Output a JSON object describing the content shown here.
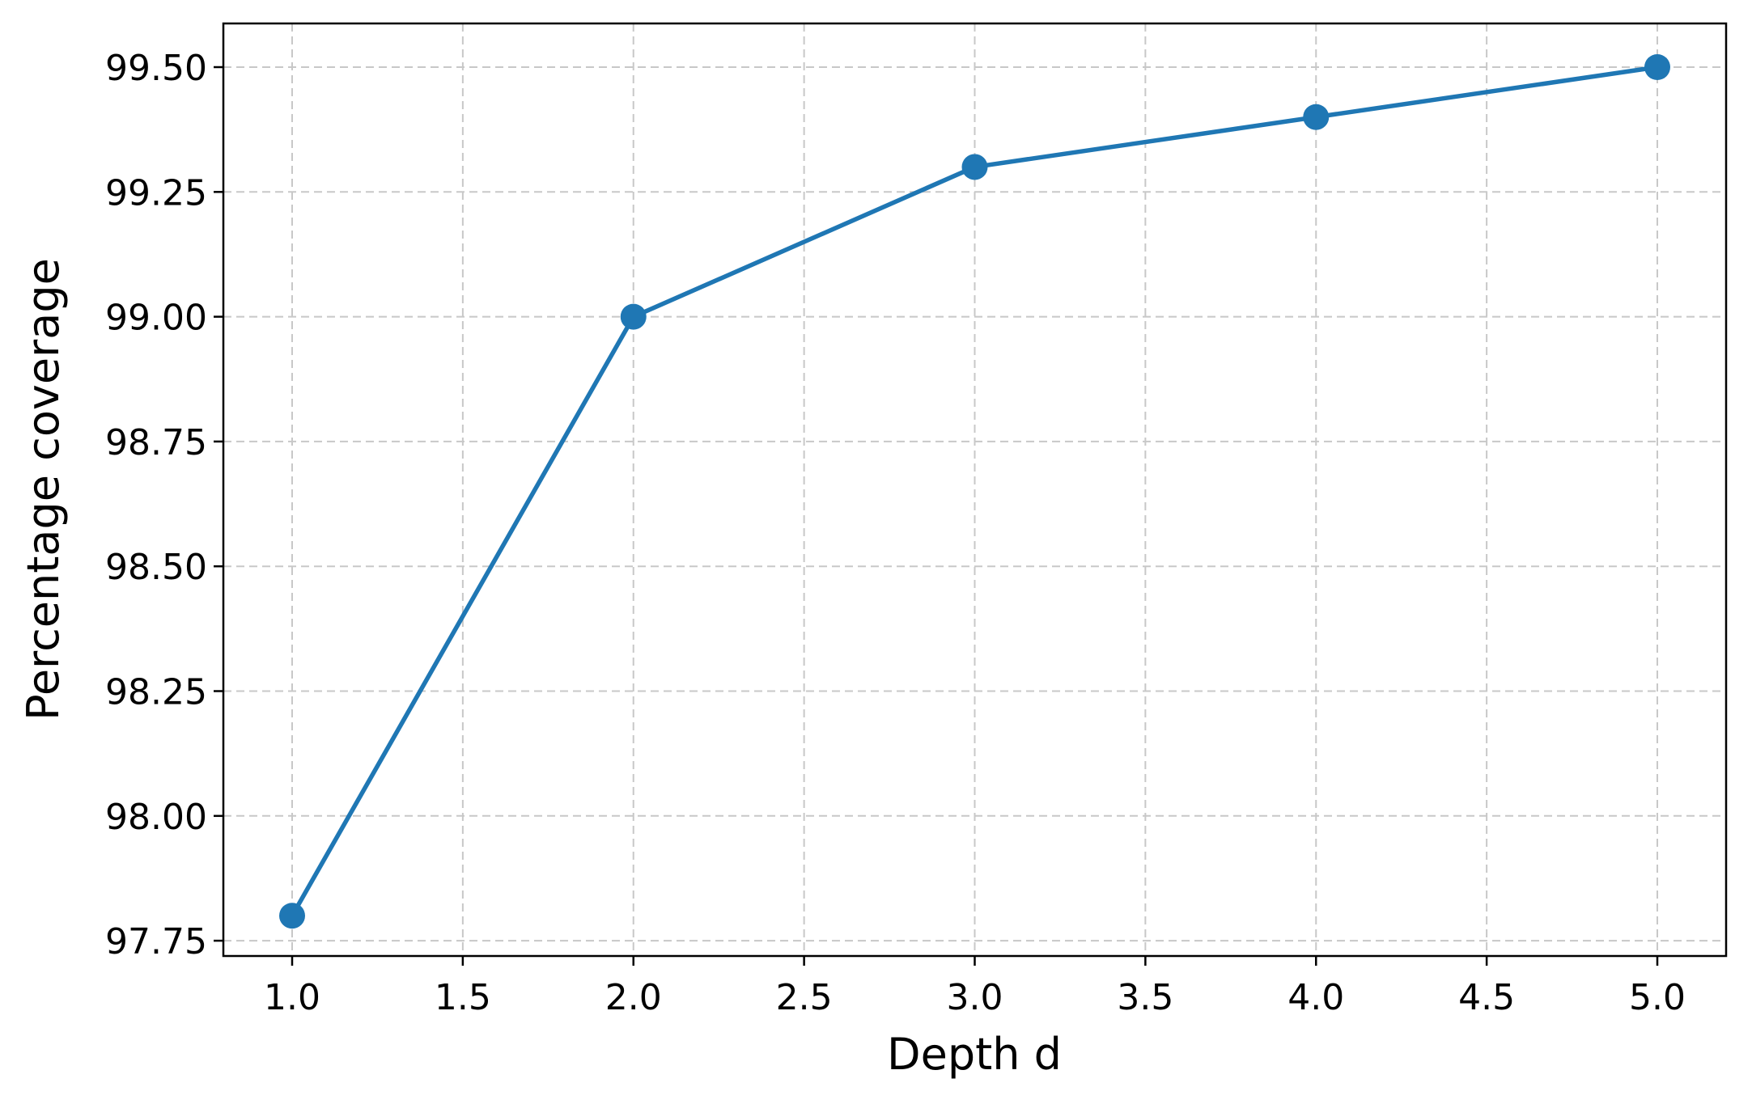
{
  "chart_data": {
    "type": "line",
    "title": "",
    "xlabel": "Depth d",
    "ylabel": "Percentage coverage",
    "x": [
      1,
      2,
      3,
      4,
      5
    ],
    "series": [
      {
        "values": [
          97.8,
          99.0,
          99.3,
          99.4,
          99.5
        ],
        "color": "#1f77b4",
        "marker": "circle"
      }
    ],
    "xlim": [
      0.8,
      5.2
    ],
    "ylim": [
      97.725,
      99.575
    ],
    "xticks": [
      "1.0",
      "1.5",
      "2.0",
      "2.5",
      "3.0",
      "3.5",
      "4.0",
      "4.5",
      "5.0"
    ],
    "yticks": [
      "97.75",
      "98.00",
      "98.25",
      "98.50",
      "98.75",
      "99.00",
      "99.25",
      "99.50"
    ],
    "grid": true,
    "grid_style": "dashed",
    "legend": "none"
  }
}
